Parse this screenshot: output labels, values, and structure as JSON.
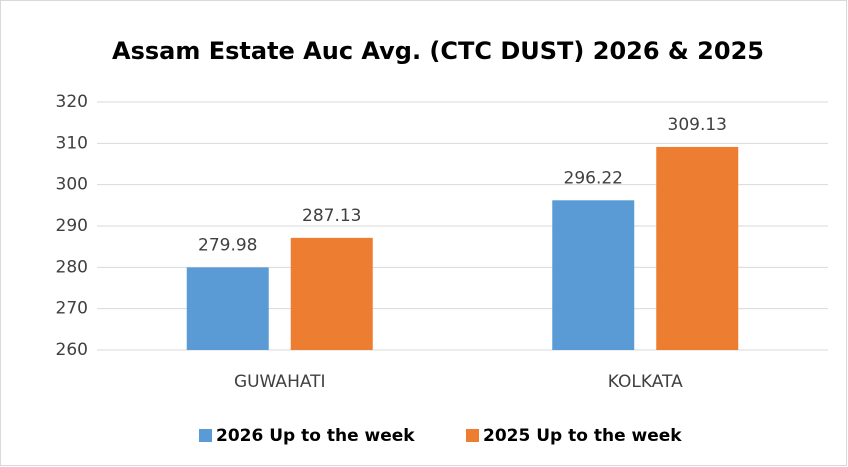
{
  "chart_data": {
    "type": "bar",
    "title": "Assam Estate Auc Avg. (CTC DUST) 2026 & 2025",
    "categories": [
      "GUWAHATI",
      "KOLKATA"
    ],
    "series": [
      {
        "name": "2026 Up to the week",
        "color": "#5b9bd5",
        "values": [
          279.98,
          296.22
        ]
      },
      {
        "name": "2025 Up to the week",
        "color": "#ed7d31",
        "values": [
          287.13,
          309.13
        ]
      }
    ],
    "ylim": [
      260,
      320
    ],
    "yticks": [
      260,
      270,
      280,
      290,
      300,
      310,
      320
    ],
    "grid": true,
    "legend": "bottom"
  }
}
